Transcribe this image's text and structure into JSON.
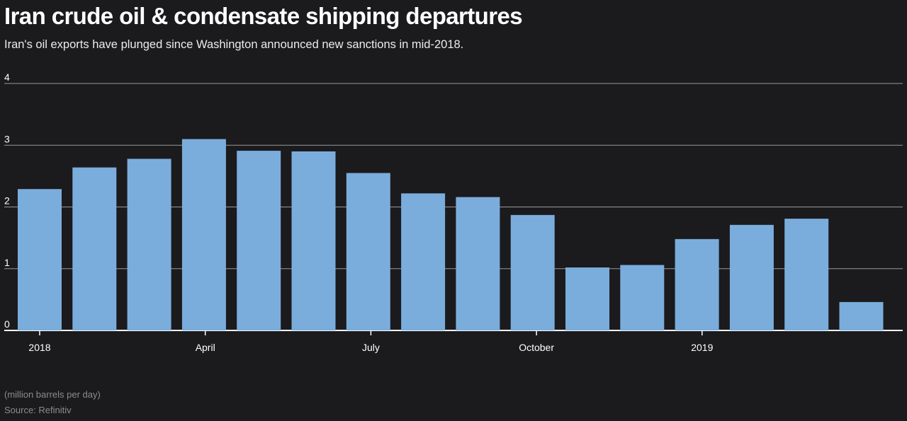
{
  "header": {
    "title": "Iran crude oil & condensate shipping departures",
    "subtitle": "Iran's oil exports have plunged since Washington announced new sanctions in mid-2018."
  },
  "footer": {
    "unit": "(million barrels per day)",
    "source": "Source: Refinitiv"
  },
  "colors": {
    "bar": "#7aaddc",
    "grid": "#9a9a9a",
    "baseline": "#ffffff",
    "background": "#1b1a1d",
    "text": "#ffffff"
  },
  "chart_data": {
    "type": "bar",
    "title": "Iran crude oil & condensate shipping departures",
    "subtitle": "Iran's oil exports have plunged since Washington announced new sanctions in mid-2018.",
    "ylabel": "(million barrels per day)",
    "ylim": [
      0,
      4
    ],
    "y_ticks": [
      "0",
      "1",
      "2",
      "3",
      "4"
    ],
    "x_ticks": [
      {
        "label": "2018",
        "month_index": 0
      },
      {
        "label": "April",
        "month_index": 3
      },
      {
        "label": "July",
        "month_index": 6
      },
      {
        "label": "October",
        "month_index": 9
      },
      {
        "label": "2019",
        "month_index": 12
      }
    ],
    "categories": [
      "Jan 2018",
      "Feb 2018",
      "Mar 2018",
      "Apr 2018",
      "May 2018",
      "Jun 2018",
      "Jul 2018",
      "Aug 2018",
      "Sep 2018",
      "Oct 2018",
      "Nov 2018",
      "Dec 2018",
      "Jan 2019",
      "Feb 2019",
      "Mar 2019",
      "Apr 2019"
    ],
    "values": [
      2.29,
      2.64,
      2.78,
      3.1,
      2.91,
      2.9,
      2.55,
      2.22,
      2.16,
      1.87,
      1.02,
      1.06,
      1.48,
      1.71,
      1.81,
      0.46
    ],
    "grid": true,
    "legend": "none"
  }
}
